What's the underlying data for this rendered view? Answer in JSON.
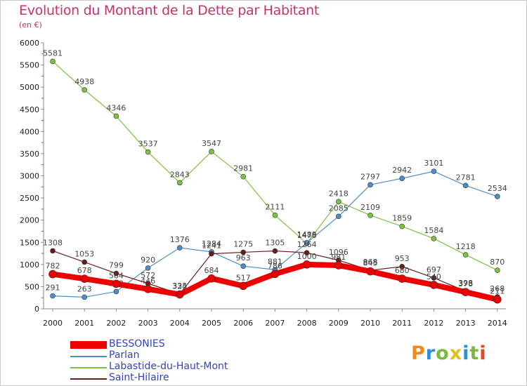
{
  "title": "Evolution du Montant de la Dette par Habitant",
  "unit": "(en €)",
  "logo": {
    "text": "Proxiti",
    "colors": [
      "#f08a1e",
      "#2b8fd6",
      "#7ab93a",
      "#e0c21a",
      "#2b8fd6",
      "#7ab93a",
      "#e04a2a"
    ]
  },
  "chart_data": {
    "type": "line",
    "x": [
      "2000",
      "2001",
      "2002",
      "2003",
      "2004",
      "2005",
      "2006",
      "2007",
      "2008",
      "2009",
      "2010",
      "2011",
      "2012",
      "2013",
      "2014"
    ],
    "yticks": [
      "0",
      "500",
      "1000",
      "1500",
      "2000",
      "2500",
      "3000",
      "3500",
      "4000",
      "4500",
      "5000",
      "5500",
      "6000"
    ],
    "ylim": [
      0,
      6000
    ],
    "grid": false,
    "legend_position": "bottom-left",
    "series": [
      {
        "name": "Labastide-du-Haut-Mont",
        "color": "#7cc242",
        "width": 1.2,
        "marker": 3.5,
        "values": [
          5581,
          4938,
          4346,
          3537,
          2843,
          3547,
          2981,
          2111,
          1476,
          2418,
          2109,
          1859,
          1584,
          1218,
          870
        ],
        "labels": [
          "5581",
          "4938",
          "4346",
          "3537",
          "2843",
          "3547",
          "2981",
          "2111",
          "1476",
          "2418",
          "2109",
          "1859",
          "1584",
          "1218",
          "870"
        ]
      },
      {
        "name": "Parlan",
        "color": "#4a8fc7",
        "width": 1.2,
        "marker": 3.5,
        "values": [
          291,
          263,
          389,
          920,
          1376,
          1284,
          963,
          881,
          1489,
          2085,
          2797,
          2942,
          3101,
          2781,
          2534
        ],
        "labels": [
          "291",
          "263",
          "389",
          "920",
          "1376",
          "1284",
          "963",
          "881",
          "1489",
          "2085",
          "2797",
          "2942",
          "3101",
          "2781",
          "2534"
        ]
      },
      {
        "name": "Saint-Hilaire",
        "color": "#6b1a1a",
        "width": 1.2,
        "marker": 3.5,
        "values": [
          1308,
          1053,
          799,
          572,
          335,
          1241,
          1275,
          1305,
          1264,
          1096,
          868,
          953,
          697,
          398,
          268
        ],
        "labels": [
          "1308",
          "1053",
          "799",
          "572",
          "335",
          "1241",
          "1275",
          "1305",
          "1264",
          "1096",
          "868",
          "953",
          "697",
          "398",
          "268"
        ]
      },
      {
        "name": "BESSONIES",
        "color": "#ee0000",
        "width": 8,
        "marker": 5.5,
        "values": [
          782,
          678,
          564,
          446,
          324,
          684,
          517,
          786,
          1000,
          981,
          845,
          680,
          540,
          378,
          211
        ],
        "labels": [
          "782",
          "678",
          "564",
          "446",
          "324",
          "684",
          "517",
          "786",
          "1000",
          "981",
          "845",
          "680",
          "540",
          "378",
          "211"
        ]
      }
    ],
    "legend": [
      {
        "name": "BESSONIES",
        "color": "#ee0000",
        "thick": true
      },
      {
        "name": "Parlan",
        "color": "#4a8fc7",
        "thick": false
      },
      {
        "name": "Labastide-du-Haut-Mont",
        "color": "#7cc242",
        "thick": false
      },
      {
        "name": "Saint-Hilaire",
        "color": "#6b1a1a",
        "thick": false
      }
    ]
  }
}
